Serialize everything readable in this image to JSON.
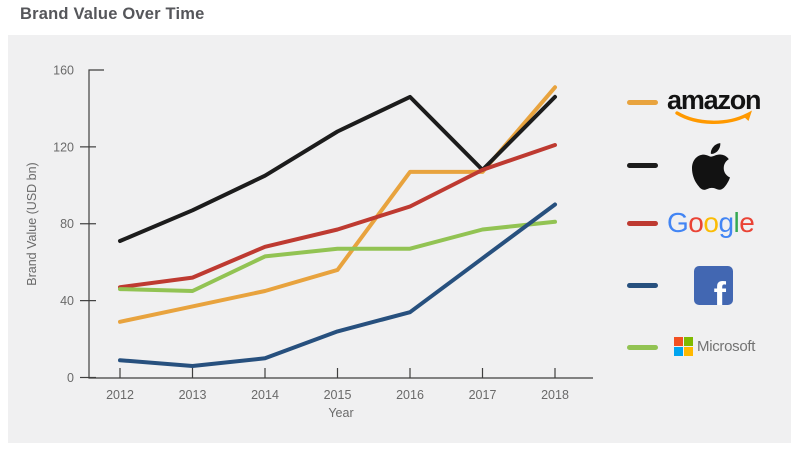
{
  "title": "Brand Value Over Time",
  "chart_data": {
    "type": "line",
    "title": "Brand Value Over Time",
    "xlabel": "Year",
    "ylabel": "Brand Value (USD bn)",
    "categories": [
      "2012",
      "2013",
      "2014",
      "2015",
      "2016",
      "2017",
      "2018"
    ],
    "yticks": [
      0,
      40,
      80,
      120,
      160
    ],
    "ylim": [
      0,
      160
    ],
    "grid": false,
    "legend_position": "right",
    "series": [
      {
        "name": "Amazon",
        "color": "#e8a33e",
        "values": [
          29,
          37,
          45,
          56,
          107,
          107,
          151
        ]
      },
      {
        "name": "Apple",
        "color": "#1c1c1c",
        "values": [
          71,
          87,
          105,
          128,
          146,
          108,
          146
        ]
      },
      {
        "name": "Google",
        "color": "#be3a31",
        "values": [
          47,
          52,
          68,
          77,
          89,
          108,
          121
        ]
      },
      {
        "name": "Facebook",
        "color": "#27507e",
        "values": [
          9,
          6,
          10,
          24,
          34,
          62,
          90
        ]
      },
      {
        "name": "Microsoft",
        "color": "#92c353",
        "values": [
          46,
          45,
          63,
          67,
          67,
          77,
          81
        ]
      }
    ]
  },
  "legend": {
    "amazon": {
      "text": "amazon",
      "text_color": "#131313",
      "smile_color": "#ff9900"
    },
    "apple": {
      "color": "#121212"
    },
    "google": {
      "letters": [
        "G",
        "o",
        "o",
        "g",
        "l",
        "e"
      ],
      "colors": [
        "#4285f4",
        "#ea4335",
        "#fbbc05",
        "#4285f4",
        "#34a853",
        "#ea4335"
      ]
    },
    "facebook": {
      "letter": "f",
      "bg": "#4267b2",
      "letter_color": "#ffffff"
    },
    "microsoft": {
      "text": "Microsoft",
      "text_color": "#737373",
      "square_colors": [
        "#f25022",
        "#7fba00",
        "#00a4ef",
        "#ffb900"
      ]
    }
  },
  "colors": {
    "panel_bg": "#f0f0f1",
    "axis": "#3f3f3f",
    "tick_label": "#6a6a6a"
  }
}
